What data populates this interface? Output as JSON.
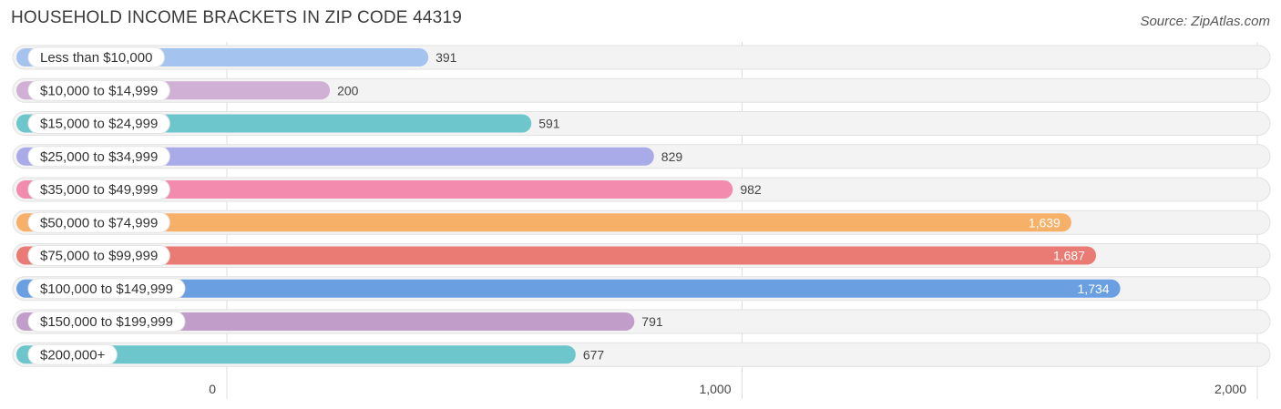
{
  "chart_data": {
    "type": "bar",
    "orientation": "horizontal",
    "title": "HOUSEHOLD INCOME BRACKETS IN ZIP CODE 44319",
    "source": "Source: ZipAtlas.com",
    "categories": [
      "Less than $10,000",
      "$10,000 to $14,999",
      "$15,000 to $24,999",
      "$25,000 to $34,999",
      "$35,000 to $49,999",
      "$50,000 to $74,999",
      "$75,000 to $99,999",
      "$100,000 to $149,999",
      "$150,000 to $199,999",
      "$200,000+"
    ],
    "values": [
      391,
      200,
      591,
      829,
      982,
      1639,
      1687,
      1734,
      791,
      677
    ],
    "value_labels": [
      "391",
      "200",
      "591",
      "829",
      "982",
      "1,639",
      "1,687",
      "1,734",
      "791",
      "677"
    ],
    "colors": [
      "#a4c3ee",
      "#d1b0d6",
      "#6dc6cc",
      "#a8abe8",
      "#f28bad",
      "#f7b068",
      "#ea7a74",
      "#6a9fe2",
      "#c19ec9",
      "#6dc6cc"
    ],
    "xlim": [
      0,
      2000
    ],
    "xticks": [
      0,
      1000,
      2000
    ],
    "xtick_labels": [
      "0",
      "1,000",
      "2,000"
    ],
    "grid": true
  }
}
